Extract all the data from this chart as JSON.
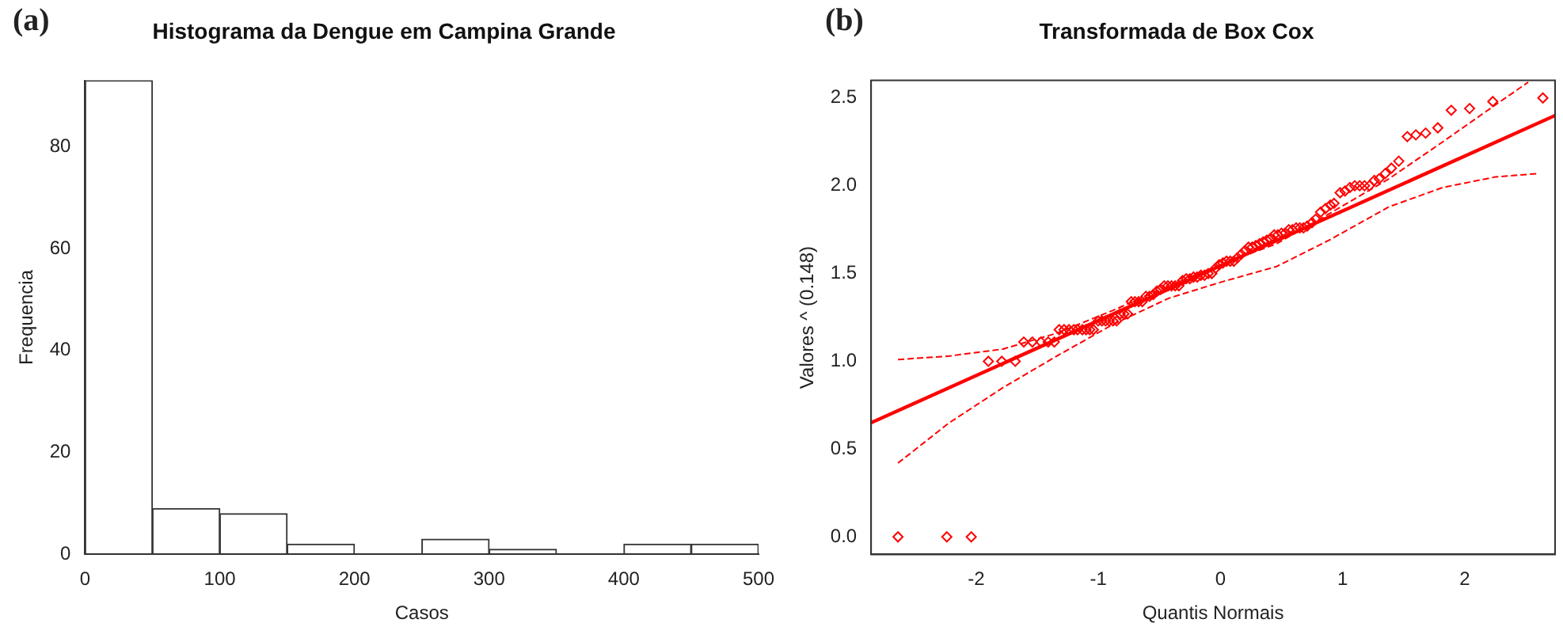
{
  "chart_data": [
    {
      "type": "histogram",
      "title": "Histograma da Dengue em Campina Grande",
      "xlabel": "Casos",
      "ylabel": "Frequencia",
      "annotations": [
        "(a)"
      ],
      "bins": [
        0,
        50,
        100,
        150,
        200,
        250,
        300,
        350,
        400,
        450,
        500
      ],
      "values": [
        93,
        9,
        8,
        2,
        0,
        3,
        1,
        0,
        2,
        2
      ],
      "color": "#ffffff",
      "xlim": [
        0,
        500
      ],
      "xticks": [
        0,
        100,
        200,
        300,
        400,
        500
      ],
      "ylim": [
        0,
        93
      ],
      "yticks": [
        0,
        20,
        40,
        60,
        80
      ],
      "grid": false,
      "legend": false
    },
    {
      "type": "scatter",
      "title": "Transformada de Box Cox",
      "xlabel": "Quantis Normais",
      "ylabel": "Valores ^ (0.148)",
      "annotations": [
        "(b)"
      ],
      "xlim": [
        -2.86,
        2.74
      ],
      "xticks": [
        -2,
        -1,
        0,
        1,
        2
      ],
      "ylim": [
        -0.1,
        2.6
      ],
      "yticks": [
        {
          "value": 0,
          "label": "0.0"
        },
        {
          "value": 0.5,
          "label": "0.5"
        },
        {
          "value": 1,
          "label": "1.0"
        },
        {
          "value": 1.5,
          "label": "1.5"
        },
        {
          "value": 2,
          "label": "2.0"
        },
        {
          "value": 2.5,
          "label": "2.5"
        }
      ],
      "grid": false,
      "legend": false,
      "series": [
        {
          "type": "scatter",
          "marker": "diamond",
          "color": "#ff0000",
          "x": [
            -2.64,
            -2.24,
            -2.04,
            -1.9,
            -1.79,
            -1.68,
            -1.61,
            -1.54,
            -1.47,
            -1.41,
            -1.36,
            -1.32,
            -1.28,
            -1.24,
            -1.2,
            -1.17,
            -1.13,
            -1.1,
            -1.07,
            -1.04,
            -1.0,
            -0.97,
            -0.94,
            -0.91,
            -0.88,
            -0.85,
            -0.82,
            -0.79,
            -0.76,
            -0.73,
            -0.7,
            -0.67,
            -0.64,
            -0.61,
            -0.58,
            -0.55,
            -0.52,
            -0.49,
            -0.46,
            -0.43,
            -0.4,
            -0.37,
            -0.34,
            -0.31,
            -0.28,
            -0.25,
            -0.22,
            -0.19,
            -0.16,
            -0.13,
            -0.1,
            -0.07,
            -0.04,
            -0.01,
            0.02,
            0.05,
            0.08,
            0.11,
            0.14,
            0.17,
            0.2,
            0.23,
            0.26,
            0.29,
            0.32,
            0.35,
            0.38,
            0.41,
            0.44,
            0.47,
            0.5,
            0.53,
            0.56,
            0.59,
            0.62,
            0.65,
            0.68,
            0.71,
            0.75,
            0.78,
            0.82,
            0.86,
            0.9,
            0.93,
            0.98,
            1.02,
            1.06,
            1.1,
            1.14,
            1.18,
            1.22,
            1.26,
            1.3,
            1.35,
            1.4,
            1.46,
            1.53,
            1.6,
            1.68,
            1.78,
            1.89,
            2.04,
            2.23,
            2.64
          ],
          "values": [
            0,
            0,
            0,
            1.0,
            1.0,
            1.0,
            1.11,
            1.11,
            1.11,
            1.11,
            1.11,
            1.18,
            1.18,
            1.18,
            1.18,
            1.18,
            1.18,
            1.18,
            1.18,
            1.18,
            1.23,
            1.23,
            1.23,
            1.23,
            1.23,
            1.23,
            1.27,
            1.27,
            1.27,
            1.34,
            1.34,
            1.34,
            1.34,
            1.37,
            1.37,
            1.38,
            1.4,
            1.41,
            1.43,
            1.43,
            1.43,
            1.43,
            1.43,
            1.46,
            1.47,
            1.47,
            1.48,
            1.48,
            1.49,
            1.49,
            1.5,
            1.5,
            1.53,
            1.55,
            1.56,
            1.57,
            1.57,
            1.57,
            1.59,
            1.61,
            1.63,
            1.65,
            1.65,
            1.66,
            1.67,
            1.68,
            1.69,
            1.7,
            1.72,
            1.72,
            1.73,
            1.73,
            1.75,
            1.75,
            1.76,
            1.76,
            1.76,
            1.77,
            1.79,
            1.81,
            1.85,
            1.87,
            1.89,
            1.9,
            1.96,
            1.97,
            1.99,
            2.0,
            2.0,
            2.0,
            2.0,
            2.03,
            2.04,
            2.07,
            2.1,
            2.14,
            2.28,
            2.29,
            2.3,
            2.33,
            2.43,
            2.44,
            2.48,
            2.5
          ]
        },
        {
          "type": "line",
          "marker": "none",
          "line_style": "solid",
          "color": "#ff0000",
          "x": [
            -2.86,
            2.74
          ],
          "values": [
            0.65,
            2.4
          ]
        },
        {
          "type": "line",
          "marker": "none",
          "line_style": "dashed",
          "color": "#ff0000",
          "x": [
            -2.64,
            -2.22,
            -1.78,
            -1.34,
            -0.88,
            -0.42,
            0,
            0.46,
            0.89,
            1.38,
            1.82,
            2.25,
            2.52
          ],
          "values": [
            1.01,
            1.03,
            1.07,
            1.16,
            1.29,
            1.43,
            1.55,
            1.67,
            1.84,
            2.04,
            2.25,
            2.46,
            2.59
          ]
        },
        {
          "type": "line",
          "marker": "none",
          "line_style": "dashed",
          "color": "#ff0000",
          "x": [
            -2.64,
            -2.22,
            -1.78,
            -1.34,
            -0.88,
            -0.42,
            0,
            0.46,
            0.89,
            1.38,
            1.82,
            2.25,
            2.61
          ],
          "values": [
            0.42,
            0.65,
            0.85,
            1.03,
            1.21,
            1.36,
            1.45,
            1.54,
            1.69,
            1.88,
            1.99,
            2.05,
            2.07
          ]
        }
      ]
    }
  ]
}
